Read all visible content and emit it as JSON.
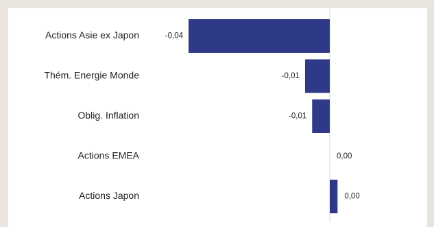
{
  "colors": {
    "bar": "#2e3a87",
    "zero_line": "#d9d9d9",
    "background": "#e9e4de",
    "panel": "#ffffff"
  },
  "chart_data": {
    "type": "bar",
    "orientation": "horizontal",
    "categories": [
      "Actions Asie ex Japon",
      "Thém. Energie Monde",
      "Oblig. Inflation",
      "Actions EMEA",
      "Actions Japon"
    ],
    "values": [
      -0.04,
      -0.007,
      -0.005,
      0.0,
      0.0022
    ],
    "value_labels": [
      "-0,04",
      "-0,01",
      "-0,01",
      "0,00",
      "0,00"
    ],
    "xlim": [
      -0.04,
      0.005
    ],
    "grid": false,
    "legend": "none"
  }
}
